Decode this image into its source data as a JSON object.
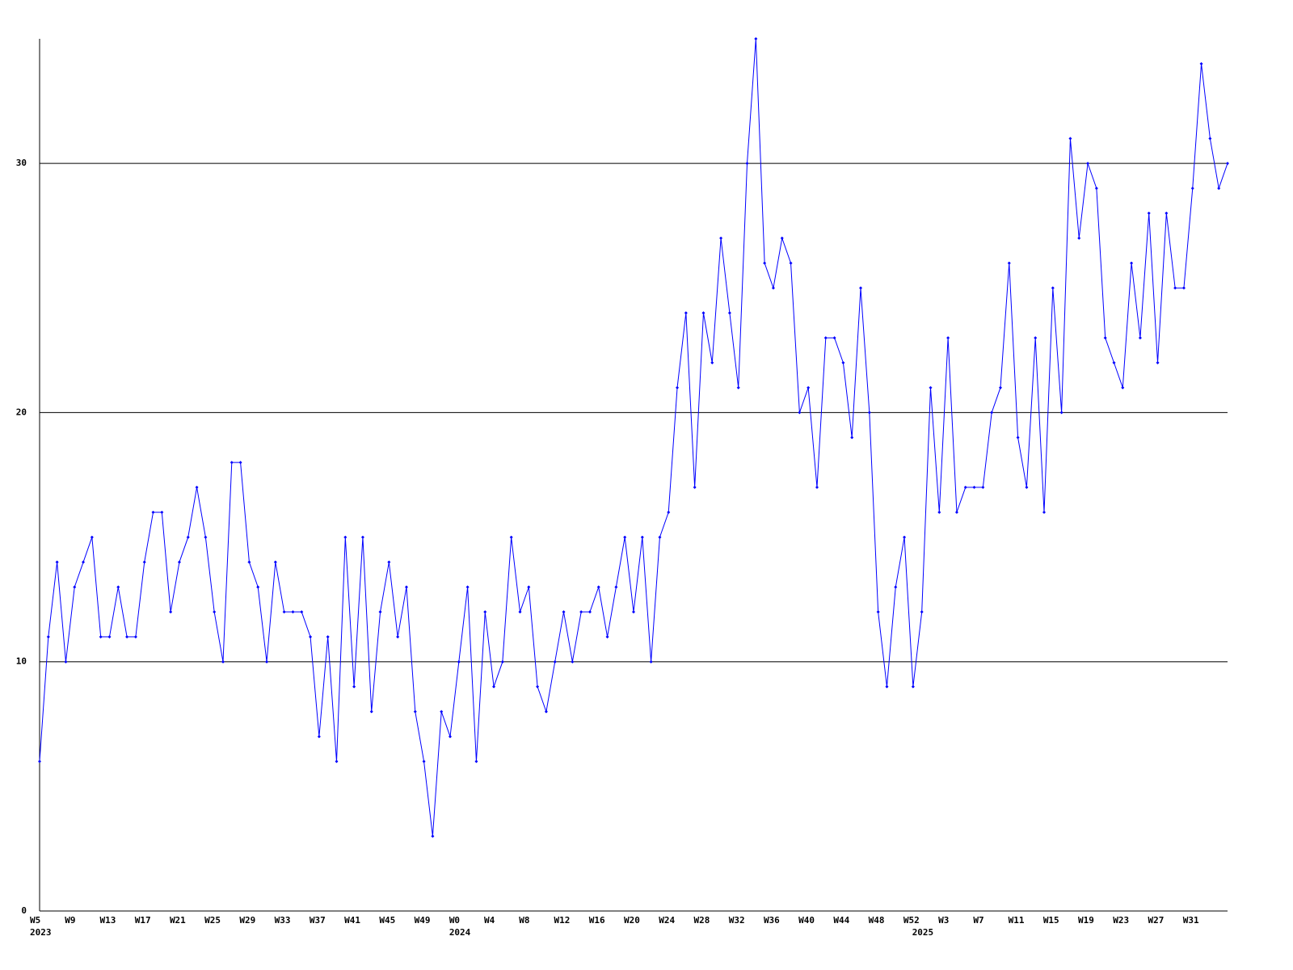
{
  "chart_data": {
    "type": "line",
    "categories": [
      "W5",
      null,
      null,
      null,
      "W9",
      null,
      null,
      null,
      "W13",
      null,
      null,
      null,
      "W17",
      null,
      null,
      null,
      "W21",
      null,
      null,
      null,
      "W25",
      null,
      null,
      null,
      "W29",
      null,
      null,
      null,
      "W33",
      null,
      null,
      null,
      "W37",
      null,
      null,
      null,
      "W41",
      null,
      null,
      null,
      "W45",
      null,
      null,
      null,
      "W49",
      null,
      null,
      null,
      "W0",
      null,
      null,
      null,
      "W4",
      null,
      null,
      null,
      "W8",
      null,
      null,
      null,
      "W12",
      null,
      null,
      null,
      "W16",
      null,
      null,
      null,
      "W20",
      null,
      null,
      null,
      "W24",
      null,
      null,
      null,
      "W28",
      null,
      null,
      null,
      "W32",
      null,
      null,
      null,
      "W36",
      null,
      null,
      null,
      "W40",
      null,
      null,
      null,
      "W44",
      null,
      null,
      null,
      "W48",
      null,
      null,
      null,
      "W52",
      null,
      null,
      null,
      "W3",
      null,
      null,
      null,
      "W7",
      null,
      null,
      null,
      "W11",
      null,
      null,
      null,
      "W15",
      null,
      null,
      null,
      "W19",
      null,
      null,
      null,
      "W23",
      null,
      null,
      null,
      "W27",
      null,
      null,
      null,
      "W31",
      null,
      null,
      null,
      null
    ],
    "year_labels": [
      "2023",
      null,
      null,
      null,
      null,
      null,
      null,
      null,
      null,
      null,
      null,
      null,
      null,
      null,
      null,
      null,
      null,
      null,
      null,
      null,
      null,
      null,
      null,
      null,
      null,
      null,
      null,
      null,
      null,
      null,
      null,
      null,
      null,
      null,
      null,
      null,
      null,
      null,
      null,
      null,
      null,
      null,
      null,
      null,
      null,
      null,
      null,
      null,
      "2024",
      null,
      null,
      null,
      null,
      null,
      null,
      null,
      null,
      null,
      null,
      null,
      null,
      null,
      null,
      null,
      null,
      null,
      null,
      null,
      null,
      null,
      null,
      null,
      null,
      null,
      null,
      null,
      null,
      null,
      null,
      null,
      null,
      null,
      null,
      null,
      null,
      null,
      null,
      null,
      null,
      null,
      null,
      null,
      null,
      null,
      null,
      null,
      null,
      null,
      null,
      null,
      null,
      "2025",
      null,
      null,
      null,
      null,
      null,
      null,
      null,
      null,
      null,
      null,
      null,
      null,
      null,
      null,
      null,
      null,
      null,
      null,
      null,
      null,
      null,
      null,
      null,
      null,
      null,
      null,
      null,
      null,
      null,
      null,
      null,
      null,
      null,
      null,
      null
    ],
    "series": [
      {
        "color": "#0000ff",
        "values": [
          6,
          11,
          14,
          10,
          13,
          14,
          15,
          11,
          11,
          13,
          11,
          11,
          14,
          16,
          16,
          12,
          14,
          15,
          17,
          15,
          12,
          10,
          18,
          18,
          14,
          13,
          10,
          14,
          12,
          12,
          12,
          11,
          7,
          11,
          6,
          15,
          9,
          15,
          8,
          12,
          14,
          11,
          13,
          8,
          6,
          3,
          8,
          7,
          10,
          13,
          6,
          12,
          9,
          10,
          15,
          12,
          13,
          9,
          8,
          10,
          12,
          10,
          12,
          12,
          13,
          11,
          13,
          15,
          12,
          15,
          10,
          15,
          16,
          21,
          24,
          17,
          24,
          22,
          27,
          24,
          21,
          30,
          35,
          26,
          25,
          27,
          26,
          20,
          21,
          17,
          23,
          23,
          22,
          19,
          25,
          20,
          12,
          9,
          13,
          15,
          9,
          12,
          21,
          16,
          23,
          16,
          17,
          17,
          17,
          20,
          21,
          26,
          19,
          17,
          23,
          16,
          25,
          20,
          31,
          27,
          30,
          29,
          23,
          22,
          21,
          26,
          23,
          28,
          22,
          28,
          25,
          25,
          29,
          34,
          31,
          29,
          30
        ]
      }
    ],
    "ylim": [
      0,
      35
    ],
    "yticks": [
      0,
      10,
      20,
      30
    ],
    "grid": true
  }
}
